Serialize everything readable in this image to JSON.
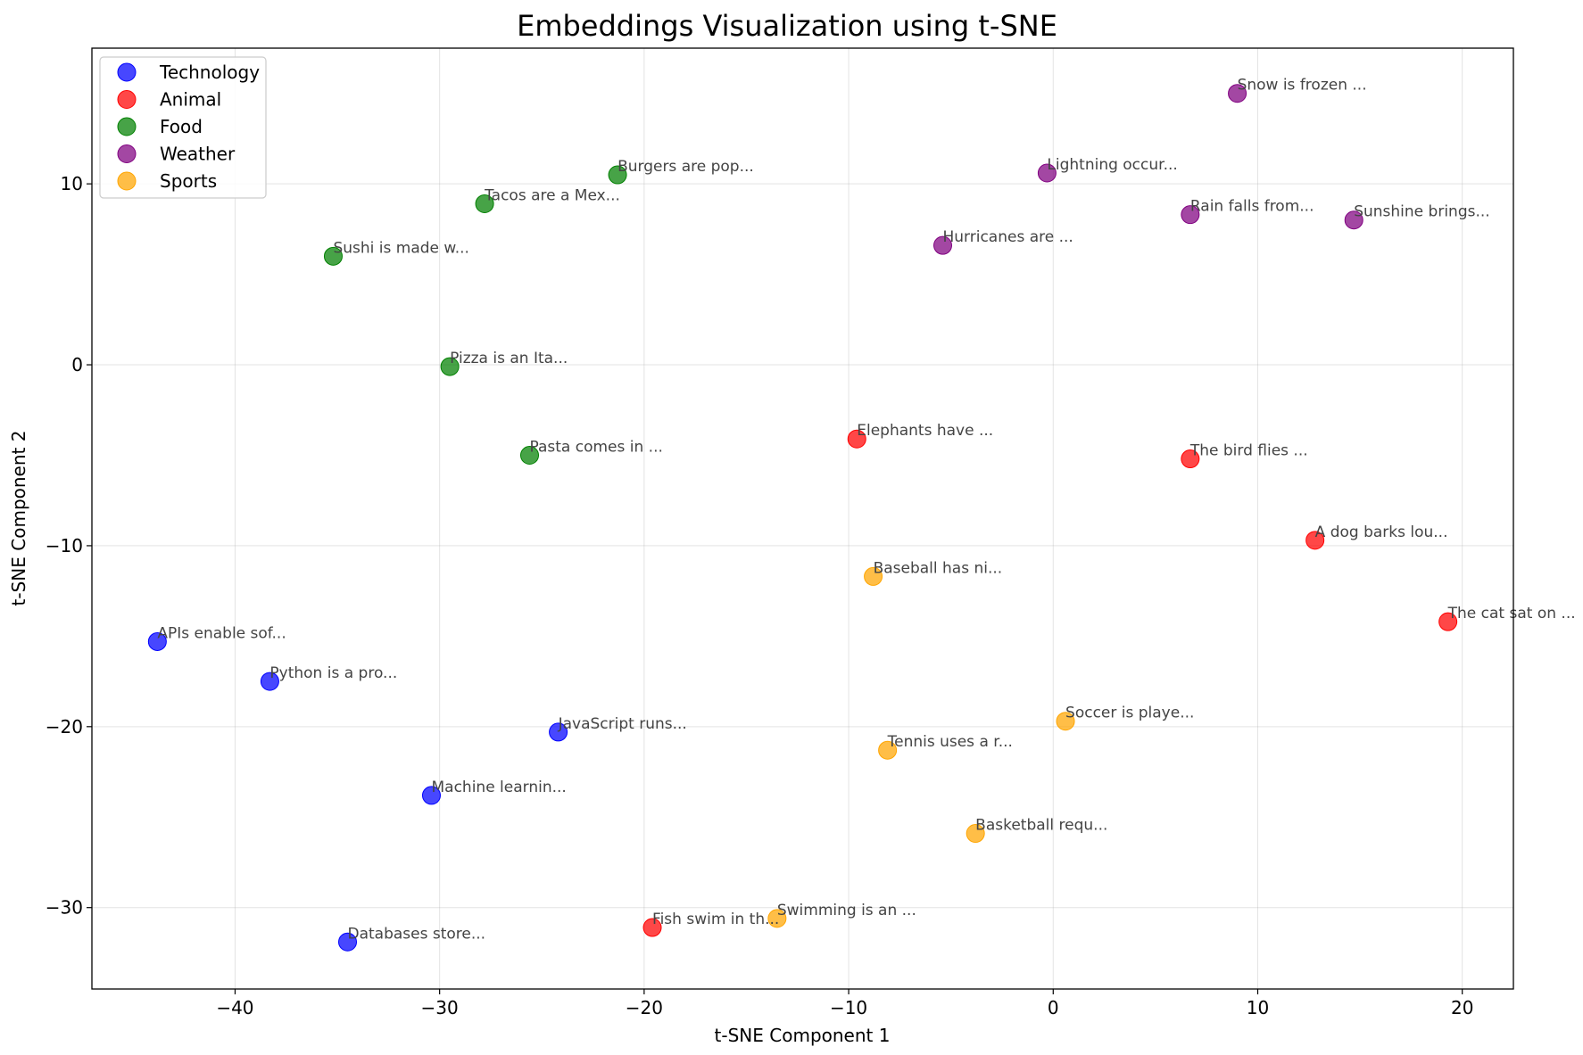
{
  "chart_data": {
    "type": "scatter",
    "title": "Embeddings Visualization using t-SNE",
    "xlabel": "t-SNE Component 1",
    "ylabel": "t-SNE Component 2",
    "xlim": [
      -47,
      22.5
    ],
    "ylim": [
      -34.5,
      17.5
    ],
    "xticks": [
      -40,
      -30,
      -20,
      -10,
      0,
      10,
      20
    ],
    "yticks": [
      -30,
      -20,
      -10,
      0,
      10
    ],
    "grid": true,
    "legend_position": "upper-left",
    "series": [
      {
        "name": "Technology",
        "color": "#0000ff",
        "points": [
          {
            "x": -43.8,
            "y": -15.3,
            "label": "APIs enable sof..."
          },
          {
            "x": -38.3,
            "y": -17.5,
            "label": "Python is a pro..."
          },
          {
            "x": -24.2,
            "y": -20.3,
            "label": "JavaScript runs..."
          },
          {
            "x": -30.4,
            "y": -23.8,
            "label": "Machine learnin..."
          },
          {
            "x": -34.5,
            "y": -31.9,
            "label": "Databases store..."
          }
        ]
      },
      {
        "name": "Animal",
        "color": "#ff0000",
        "points": [
          {
            "x": -9.6,
            "y": -4.1,
            "label": "Elephants have ..."
          },
          {
            "x": 6.7,
            "y": -5.2,
            "label": "The bird flies ..."
          },
          {
            "x": 12.8,
            "y": -9.7,
            "label": "A dog barks lou..."
          },
          {
            "x": 19.3,
            "y": -14.2,
            "label": "The cat sat on ..."
          },
          {
            "x": -19.6,
            "y": -31.1,
            "label": "Fish swim in th..."
          }
        ]
      },
      {
        "name": "Food",
        "color": "#008000",
        "points": [
          {
            "x": -21.3,
            "y": 10.5,
            "label": "Burgers are pop..."
          },
          {
            "x": -27.8,
            "y": 8.9,
            "label": "Tacos are a Mex..."
          },
          {
            "x": -35.2,
            "y": 6.0,
            "label": "Sushi is made w..."
          },
          {
            "x": -29.5,
            "y": -0.1,
            "label": "Pizza is an Ita..."
          },
          {
            "x": -25.6,
            "y": -5.0,
            "label": "Pasta comes in ..."
          }
        ]
      },
      {
        "name": "Weather",
        "color": "#800080",
        "points": [
          {
            "x": 9.0,
            "y": 15.0,
            "label": "Snow is frozen ..."
          },
          {
            "x": -0.3,
            "y": 10.6,
            "label": "Lightning occur..."
          },
          {
            "x": 6.7,
            "y": 8.3,
            "label": "Rain falls from..."
          },
          {
            "x": 14.7,
            "y": 8.0,
            "label": "Sunshine brings..."
          },
          {
            "x": -5.4,
            "y": 6.6,
            "label": "Hurricanes are ..."
          }
        ]
      },
      {
        "name": "Sports",
        "color": "#ffa500",
        "points": [
          {
            "x": -8.8,
            "y": -11.7,
            "label": "Baseball has ni..."
          },
          {
            "x": 0.6,
            "y": -19.7,
            "label": "Soccer is playe..."
          },
          {
            "x": -8.1,
            "y": -21.3,
            "label": "Tennis uses a r..."
          },
          {
            "x": -3.8,
            "y": -25.9,
            "label": "Basketball requ..."
          },
          {
            "x": -13.5,
            "y": -30.6,
            "label": "Swimming is an ..."
          }
        ]
      }
    ]
  }
}
